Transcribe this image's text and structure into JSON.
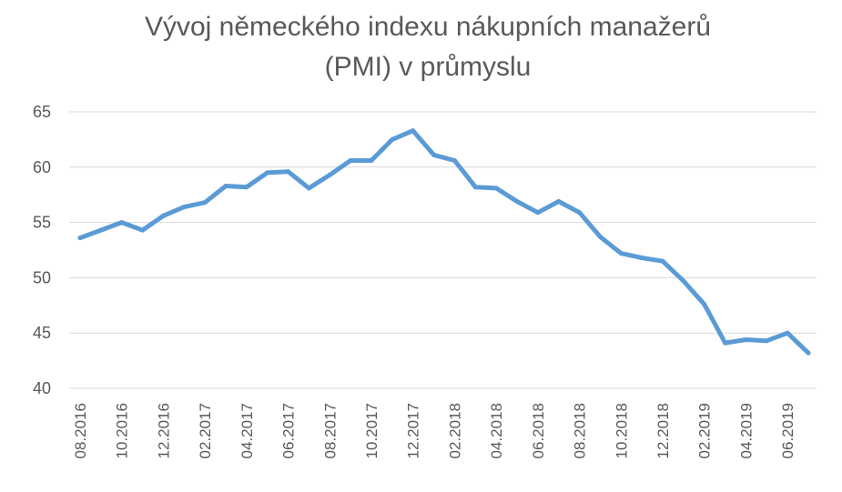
{
  "title_line1": "Vývoj německého indexu nákupních manažerů",
  "title_line2": "(PMI) v průmyslu",
  "colors": {
    "line": "#5B9BD5",
    "grid": "#D9D9D9",
    "text": "#595959"
  },
  "chart_data": {
    "type": "line",
    "title": "Vývoj německého indexu nákupních manažerů (PMI) v průmyslu",
    "xlabel": "",
    "ylabel": "",
    "ylim": [
      40,
      65
    ],
    "yticks": [
      40,
      45,
      50,
      55,
      60,
      65
    ],
    "grid": true,
    "legend": "none",
    "x": [
      "08.2016",
      "09.2016",
      "10.2016",
      "11.2016",
      "12.2016",
      "01.2017",
      "02.2017",
      "03.2017",
      "04.2017",
      "05.2017",
      "06.2017",
      "07.2017",
      "08.2017",
      "09.2017",
      "10.2017",
      "11.2017",
      "12.2017",
      "01.2018",
      "02.2018",
      "03.2018",
      "04.2018",
      "05.2018",
      "06.2018",
      "07.2018",
      "08.2018",
      "09.2018",
      "10.2018",
      "11.2018",
      "12.2018",
      "01.2019",
      "02.2019",
      "03.2019",
      "04.2019",
      "05.2019",
      "06.2019",
      "07.2019"
    ],
    "xtick_labels": [
      "08.2016",
      "10.2016",
      "12.2016",
      "02.2017",
      "04.2017",
      "06.2017",
      "08.2017",
      "10.2017",
      "12.2017",
      "02.2018",
      "04.2018",
      "06.2018",
      "08.2018",
      "10.2018",
      "12.2018",
      "02.2019",
      "04.2019",
      "06.2019"
    ],
    "series": [
      {
        "values": [
          53.6,
          54.3,
          55.0,
          54.3,
          55.6,
          56.4,
          56.8,
          58.3,
          58.2,
          59.5,
          59.6,
          58.1,
          59.3,
          60.6,
          60.6,
          62.5,
          63.3,
          61.1,
          60.6,
          58.2,
          58.1,
          56.9,
          55.9,
          56.9,
          55.9,
          53.7,
          52.2,
          51.8,
          51.5,
          49.7,
          47.6,
          44.1,
          44.4,
          44.3,
          45.0,
          43.2
        ]
      }
    ]
  }
}
